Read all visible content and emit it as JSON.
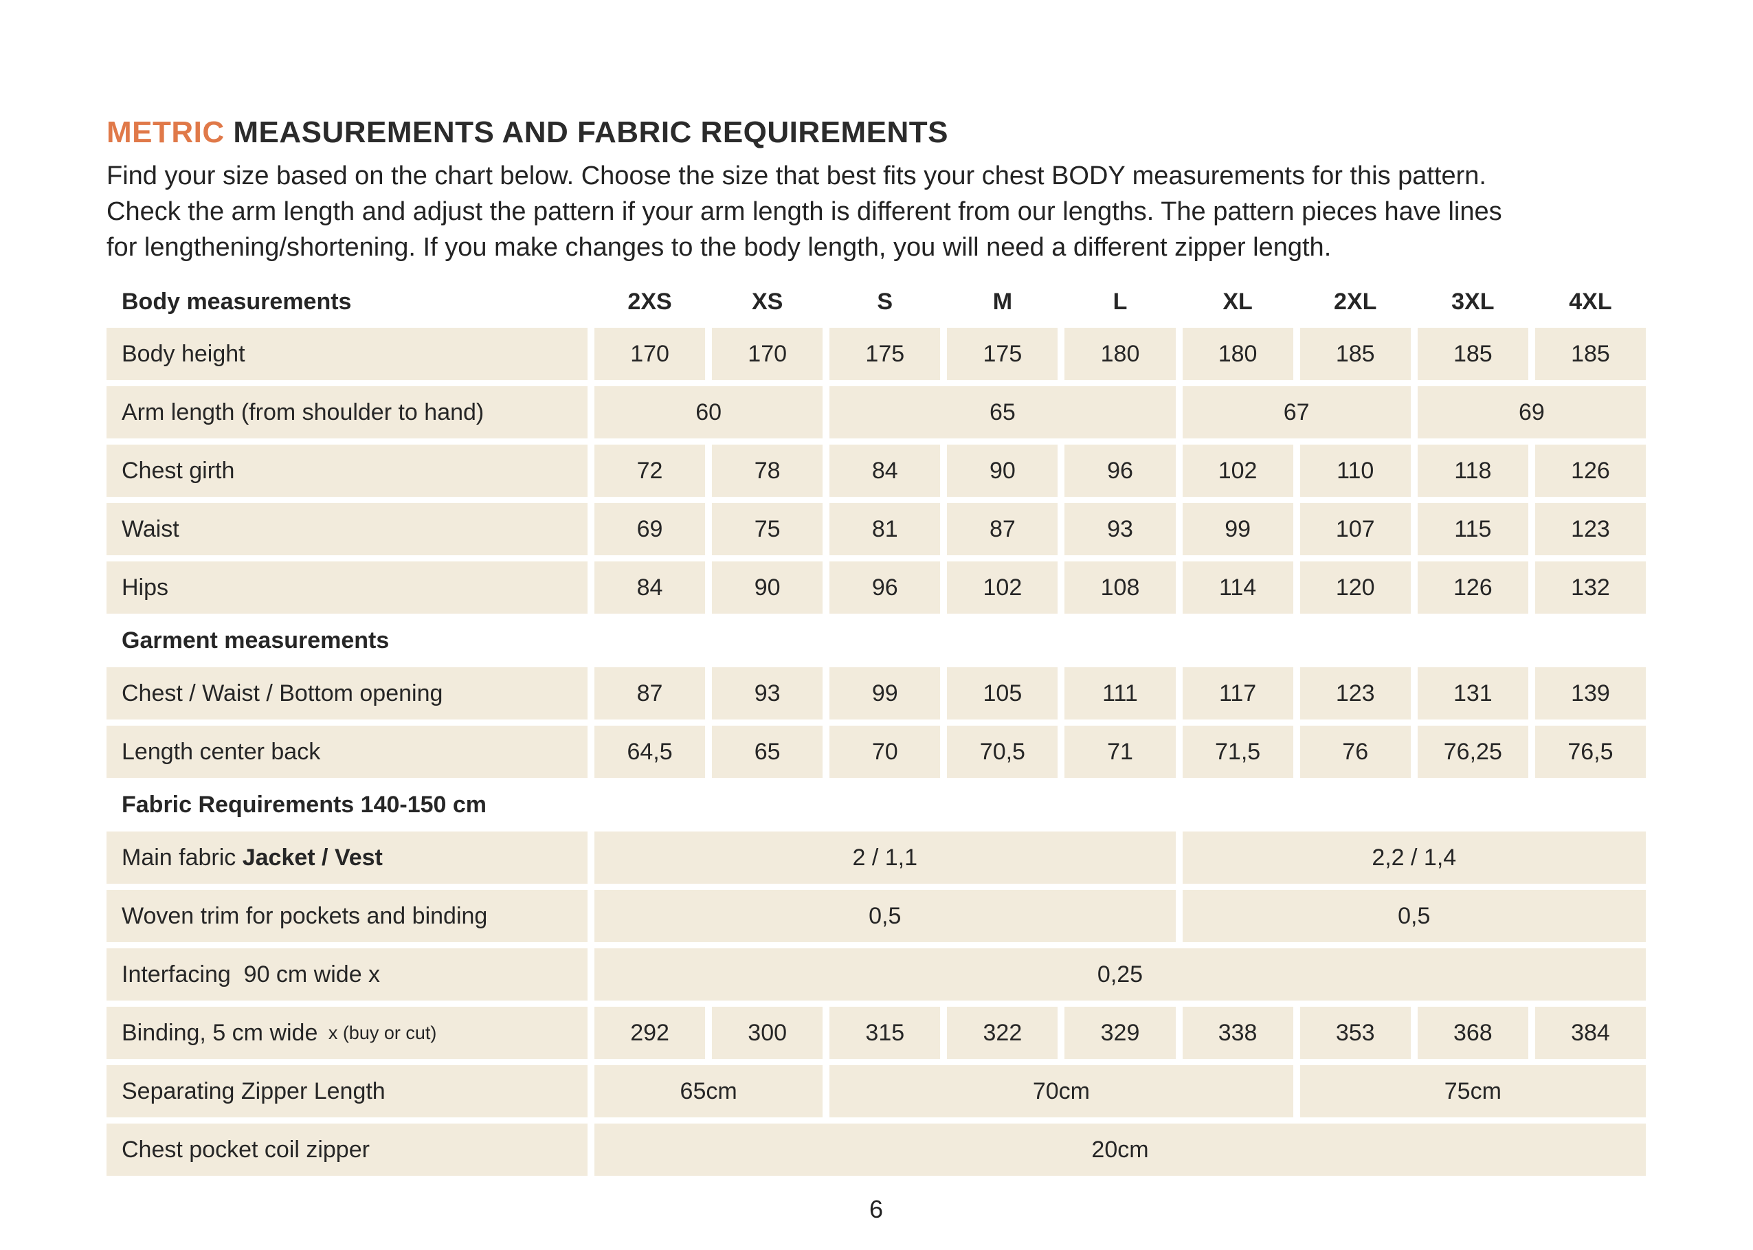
{
  "title": {
    "accent": "METRIC",
    "main": " MEASUREMENTS AND FABRIC REQUIREMENTS"
  },
  "intro": {
    "lines": [
      "Find your size based on the chart below. Choose the size that best fits your chest BODY measurements for this pattern.",
      "Check the arm length and adjust the pattern if your arm length is different from our lengths. The pattern pieces have lines",
      "for lengthening/shortening. If you make changes to the body length, you will need a different zipper length."
    ]
  },
  "colors": {
    "accent": "#e07949",
    "cell_bg": "#f2ebdc",
    "text": "#262626"
  },
  "table": {
    "size_columns": [
      "2XS",
      "XS",
      "S",
      "M",
      "L",
      "XL",
      "2XL",
      "3XL",
      "4XL"
    ],
    "rows": [
      {
        "type": "size_header",
        "label": "Body measurements"
      },
      {
        "type": "data",
        "label": "Body height",
        "cells": [
          {
            "v": "170"
          },
          {
            "v": "170"
          },
          {
            "v": "175"
          },
          {
            "v": "175"
          },
          {
            "v": "180"
          },
          {
            "v": "180"
          },
          {
            "v": "185"
          },
          {
            "v": "185"
          },
          {
            "v": "185"
          }
        ]
      },
      {
        "type": "data",
        "label": "Arm length (from shoulder to hand)",
        "cells": [
          {
            "v": "60",
            "span": 2
          },
          {
            "v": "65",
            "span": 3
          },
          {
            "v": "67",
            "span": 2
          },
          {
            "v": "69",
            "span": 2
          }
        ]
      },
      {
        "type": "data",
        "label": "Chest girth",
        "cells": [
          {
            "v": "72"
          },
          {
            "v": "78"
          },
          {
            "v": "84"
          },
          {
            "v": "90"
          },
          {
            "v": "96"
          },
          {
            "v": "102"
          },
          {
            "v": "110"
          },
          {
            "v": "118"
          },
          {
            "v": "126"
          }
        ]
      },
      {
        "type": "data",
        "label": "Waist",
        "cells": [
          {
            "v": "69"
          },
          {
            "v": "75"
          },
          {
            "v": "81"
          },
          {
            "v": "87"
          },
          {
            "v": "93"
          },
          {
            "v": "99"
          },
          {
            "v": "107"
          },
          {
            "v": "115"
          },
          {
            "v": "123"
          }
        ]
      },
      {
        "type": "data",
        "label": "Hips",
        "cells": [
          {
            "v": "84"
          },
          {
            "v": "90"
          },
          {
            "v": "96"
          },
          {
            "v": "102"
          },
          {
            "v": "108"
          },
          {
            "v": "114"
          },
          {
            "v": "120"
          },
          {
            "v": "126"
          },
          {
            "v": "132"
          }
        ]
      },
      {
        "type": "section_header",
        "label": "Garment measurements"
      },
      {
        "type": "data",
        "label": "Chest / Waist / Bottom opening",
        "cells": [
          {
            "v": "87"
          },
          {
            "v": "93"
          },
          {
            "v": "99"
          },
          {
            "v": "105"
          },
          {
            "v": "111"
          },
          {
            "v": "117"
          },
          {
            "v": "123"
          },
          {
            "v": "131"
          },
          {
            "v": "139"
          }
        ]
      },
      {
        "type": "data",
        "label": "Length center back",
        "cells": [
          {
            "v": "64,5"
          },
          {
            "v": "65"
          },
          {
            "v": "70"
          },
          {
            "v": "70,5"
          },
          {
            "v": "71"
          },
          {
            "v": "71,5"
          },
          {
            "v": "76"
          },
          {
            "v": "76,25"
          },
          {
            "v": "76,5"
          }
        ]
      },
      {
        "type": "section_header",
        "label": "Fabric Requirements 140-150 cm"
      },
      {
        "type": "data",
        "label": "Main fabric ",
        "label_bold": "Jacket / Vest",
        "cells": [
          {
            "v": "2 / 1,1",
            "span": 5
          },
          {
            "v": "2,2 / 1,4",
            "span": 4
          }
        ]
      },
      {
        "type": "data",
        "label": "Woven trim for pockets and binding",
        "cells": [
          {
            "v": "0,5",
            "span": 5
          },
          {
            "v": "0,5",
            "span": 4
          }
        ]
      },
      {
        "type": "data",
        "label": "Interfacing  90 cm wide x",
        "cells": [
          {
            "v": "0,25",
            "span": 9
          }
        ]
      },
      {
        "type": "data",
        "label": "Binding, 5 cm wide ",
        "label_small": "x (buy or cut)",
        "cells": [
          {
            "v": "292"
          },
          {
            "v": "300"
          },
          {
            "v": "315"
          },
          {
            "v": "322"
          },
          {
            "v": "329"
          },
          {
            "v": "338"
          },
          {
            "v": "353"
          },
          {
            "v": "368"
          },
          {
            "v": "384"
          }
        ]
      },
      {
        "type": "data",
        "label": "Separating Zipper Length",
        "cells": [
          {
            "v": "65cm",
            "span": 2
          },
          {
            "v": "70cm",
            "span": 4
          },
          {
            "v": "75cm",
            "span": 3
          }
        ]
      },
      {
        "type": "data",
        "label": "Chest pocket coil zipper",
        "cells": [
          {
            "v": "20cm",
            "span": 9
          }
        ]
      }
    ]
  },
  "footer": {
    "page_number": "6"
  }
}
